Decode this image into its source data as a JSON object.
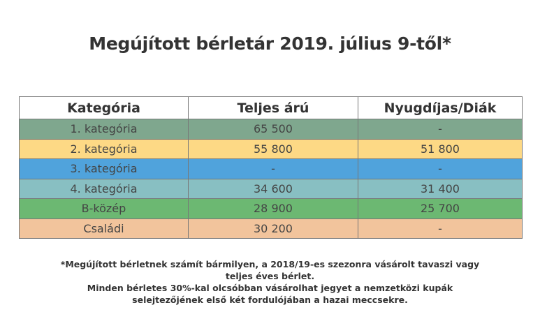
{
  "title": "Megújított bérletár 2019. július 9-től*",
  "table": {
    "headers": [
      "Kategória",
      "Teljes árú",
      "Nyugdíjas/Diák"
    ],
    "rows": [
      {
        "cells": [
          "1. kategória",
          "65 500",
          "-"
        ],
        "color": "#7fa78e"
      },
      {
        "cells": [
          "2. kategória",
          "55 800",
          "51 800"
        ],
        "color": "#fdd985"
      },
      {
        "cells": [
          "3. kategória",
          "-",
          "-"
        ],
        "color": "#50a3dc"
      },
      {
        "cells": [
          "4. kategória",
          "34 600",
          "31 400"
        ],
        "color": "#88bfc2"
      },
      {
        "cells": [
          "B-közép",
          "28 900",
          "25 700"
        ],
        "color": "#6cb872"
      },
      {
        "cells": [
          "Családi",
          "30 200",
          "-"
        ],
        "color": "#f2c49c"
      }
    ]
  },
  "footnote": {
    "line1": "*Megújított bérletnek számít bármilyen, a 2018/19-es szezonra vásárolt tavaszi vagy",
    "line2": "teljes éves bérlet.",
    "line3": "Minden bérletes 30%-kal olcsóbban vásárolhat jegyet a nemzetközi kupák",
    "line4": "selejtezőjének első két fordulójában a hazai meccsekre."
  }
}
